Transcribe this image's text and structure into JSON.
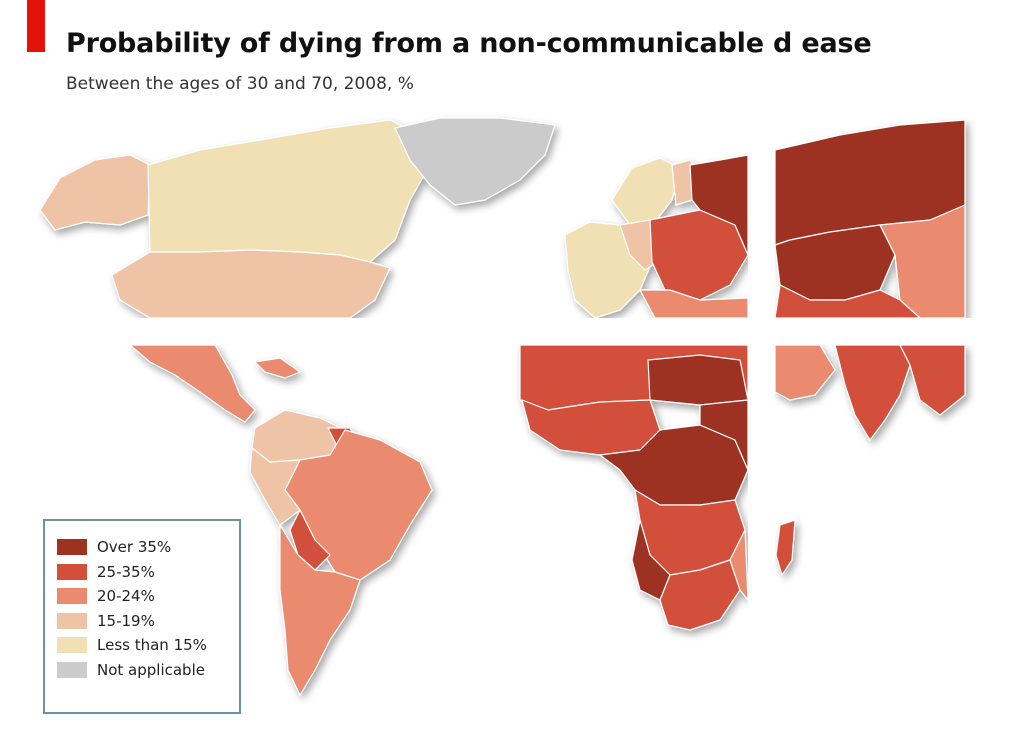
{
  "title": "Probability of dying from a non-communicable d  ease",
  "subtitle": "Between the ages of 30 and 70, 2008, %",
  "colors": {
    "brand_red": "#e3120b",
    "over35": "#9e3220",
    "c25_35": "#d2503a",
    "c20_24": "#ea8a6e",
    "c15_19": "#efc4a6",
    "under15": "#f2e0b5",
    "na": "#cbcbcb",
    "legend_border": "#6a93a5"
  },
  "legend": {
    "items": [
      {
        "label": "Over 35%",
        "color": "#9e3220"
      },
      {
        "label": "25-35%",
        "color": "#d2503a"
      },
      {
        "label": "20-24%",
        "color": "#ea8a6e"
      },
      {
        "label": "15-19%",
        "color": "#efc4a6"
      },
      {
        "label": "Less than 15%",
        "color": "#f2e0b5"
      },
      {
        "label": "Not applicable",
        "color": "#cbcbcb"
      }
    ]
  }
}
